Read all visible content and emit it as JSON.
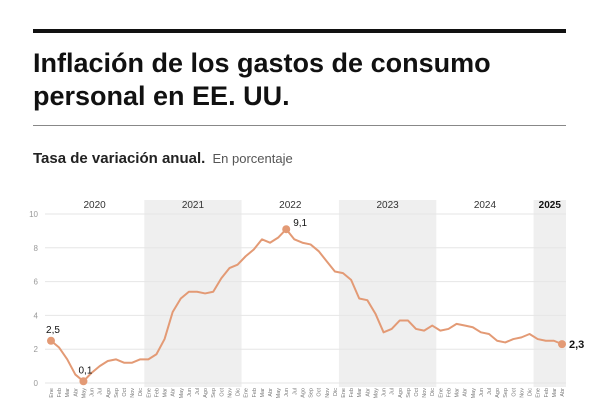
{
  "header": {
    "title": "Inflación de los gastos de consumo personal en EE. UU.",
    "subtitle": "Tasa de variación anual.",
    "unit": "En porcentaje"
  },
  "colors": {
    "line": "#e39a75",
    "point": "#e39a75",
    "band": "#efefef",
    "grid": "#e6e6e6"
  },
  "chart_data": {
    "type": "line",
    "grid": true,
    "ylim": [
      0,
      10
    ],
    "yticks": [
      0,
      2,
      4,
      6,
      8,
      10
    ],
    "x_start": "2020-01",
    "x_end": "2025-04",
    "years": [
      {
        "label": "2020",
        "shaded": false,
        "bold": false
      },
      {
        "label": "2021",
        "shaded": true,
        "bold": false
      },
      {
        "label": "2022",
        "shaded": false,
        "bold": false
      },
      {
        "label": "2023",
        "shaded": true,
        "bold": false
      },
      {
        "label": "2024",
        "shaded": false,
        "bold": false
      },
      {
        "label": "2025",
        "shaded": true,
        "bold": true
      }
    ],
    "month_labels": [
      "Ene",
      "Feb",
      "Mar",
      "Abr",
      "May",
      "Jun",
      "Jul",
      "Ago",
      "Sep",
      "Oct",
      "Nov",
      "Dic"
    ],
    "x": [
      "2020-01",
      "2020-02",
      "2020-03",
      "2020-04",
      "2020-05",
      "2020-06",
      "2020-07",
      "2020-08",
      "2020-09",
      "2020-10",
      "2020-11",
      "2020-12",
      "2021-01",
      "2021-02",
      "2021-03",
      "2021-04",
      "2021-05",
      "2021-06",
      "2021-07",
      "2021-08",
      "2021-09",
      "2021-10",
      "2021-11",
      "2021-12",
      "2022-01",
      "2022-02",
      "2022-03",
      "2022-04",
      "2022-05",
      "2022-06",
      "2022-07",
      "2022-08",
      "2022-09",
      "2022-10",
      "2022-11",
      "2022-12",
      "2023-01",
      "2023-02",
      "2023-03",
      "2023-04",
      "2023-05",
      "2023-06",
      "2023-07",
      "2023-08",
      "2023-09",
      "2023-10",
      "2023-11",
      "2023-12",
      "2024-01",
      "2024-02",
      "2024-03",
      "2024-04",
      "2024-05",
      "2024-06",
      "2024-07",
      "2024-08",
      "2024-09",
      "2024-10",
      "2024-11",
      "2024-12",
      "2025-01",
      "2025-02",
      "2025-03",
      "2025-04"
    ],
    "values": [
      2.5,
      2.1,
      1.4,
      0.5,
      0.1,
      0.6,
      1.0,
      1.3,
      1.4,
      1.2,
      1.2,
      1.4,
      1.4,
      1.7,
      2.6,
      4.2,
      5.0,
      5.4,
      5.4,
      5.3,
      5.4,
      6.2,
      6.8,
      7.0,
      7.5,
      7.9,
      8.5,
      8.3,
      8.6,
      9.1,
      8.5,
      8.3,
      8.2,
      7.8,
      7.2,
      6.6,
      6.5,
      6.1,
      5.0,
      4.9,
      4.1,
      3.0,
      3.2,
      3.7,
      3.7,
      3.2,
      3.1,
      3.4,
      3.1,
      3.2,
      3.5,
      3.4,
      3.3,
      3.0,
      2.9,
      2.5,
      2.4,
      2.6,
      2.7,
      2.9,
      2.6,
      2.5,
      2.5,
      2.3
    ],
    "annotations": [
      {
        "x": "2020-01",
        "label": "2,5",
        "bold": false,
        "pos": "above"
      },
      {
        "x": "2020-05",
        "label": "0,1",
        "bold": false,
        "pos": "above"
      },
      {
        "x": "2022-06",
        "label": "9,1",
        "bold": false,
        "pos": "right"
      },
      {
        "x": "2025-04",
        "label": "2,3",
        "bold": true,
        "pos": "right"
      }
    ]
  }
}
